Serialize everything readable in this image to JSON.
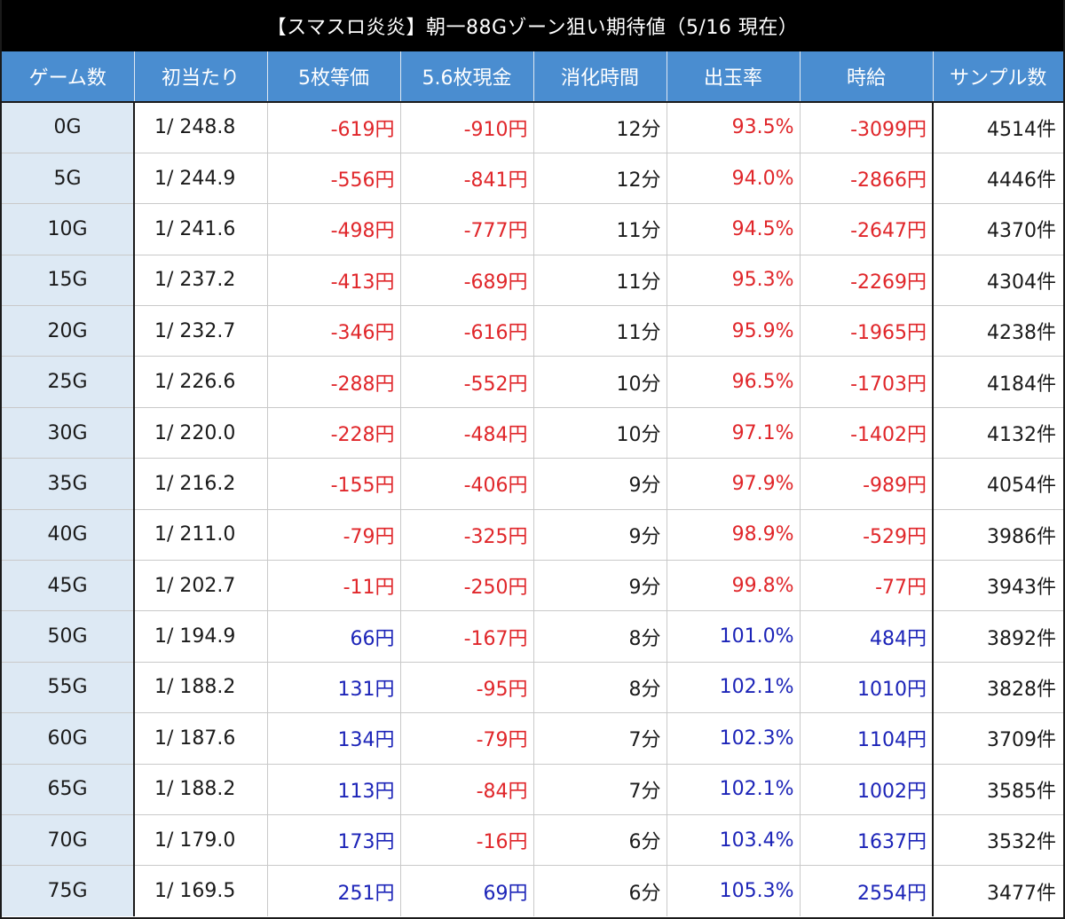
{
  "title": "【スマスロ炎炎】朝一88Gゾーン狙い期待値（5/16 現在）",
  "colors": {
    "header_bg": "#4a8dd0",
    "first_col_bg": "#dde9f4",
    "negative": "#e0262a",
    "positive": "#1c24b8",
    "title_bg": "#000000"
  },
  "chart_data": {
    "type": "table",
    "title": "【スマスロ炎炎】朝一88Gゾーン狙い期待値（5/16 現在）",
    "columns": [
      "ゲーム数",
      "初当たり",
      "5枚等価",
      "5.6枚現金",
      "消化時間",
      "出玉率",
      "時給",
      "サンプル数"
    ],
    "rows": [
      [
        "0G",
        "1/ 248.8",
        "-619円",
        "-910円",
        "12分",
        "93.5%",
        "-3099円",
        "4514件"
      ],
      [
        "5G",
        "1/ 244.9",
        "-556円",
        "-841円",
        "12分",
        "94.0%",
        "-2866円",
        "4446件"
      ],
      [
        "10G",
        "1/ 241.6",
        "-498円",
        "-777円",
        "11分",
        "94.5%",
        "-2647円",
        "4370件"
      ],
      [
        "15G",
        "1/ 237.2",
        "-413円",
        "-689円",
        "11分",
        "95.3%",
        "-2269円",
        "4304件"
      ],
      [
        "20G",
        "1/ 232.7",
        "-346円",
        "-616円",
        "11分",
        "95.9%",
        "-1965円",
        "4238件"
      ],
      [
        "25G",
        "1/ 226.6",
        "-288円",
        "-552円",
        "10分",
        "96.5%",
        "-1703円",
        "4184件"
      ],
      [
        "30G",
        "1/ 220.0",
        "-228円",
        "-484円",
        "10分",
        "97.1%",
        "-1402円",
        "4132件"
      ],
      [
        "35G",
        "1/ 216.2",
        "-155円",
        "-406円",
        "9分",
        "97.9%",
        "-989円",
        "4054件"
      ],
      [
        "40G",
        "1/ 211.0",
        "-79円",
        "-325円",
        "9分",
        "98.9%",
        "-529円",
        "3986件"
      ],
      [
        "45G",
        "1/ 202.7",
        "-11円",
        "-250円",
        "9分",
        "99.8%",
        "-77円",
        "3943件"
      ],
      [
        "50G",
        "1/ 194.9",
        "66円",
        "-167円",
        "8分",
        "101.0%",
        "484円",
        "3892件"
      ],
      [
        "55G",
        "1/ 188.2",
        "131円",
        "-95円",
        "8分",
        "102.1%",
        "1010円",
        "3828件"
      ],
      [
        "60G",
        "1/ 187.6",
        "134円",
        "-79円",
        "7分",
        "102.3%",
        "1104円",
        "3709件"
      ],
      [
        "65G",
        "1/ 188.2",
        "113円",
        "-84円",
        "7分",
        "102.1%",
        "1002円",
        "3585件"
      ],
      [
        "70G",
        "1/ 179.0",
        "173円",
        "-16円",
        "6分",
        "103.4%",
        "1637円",
        "3532件"
      ],
      [
        "75G",
        "1/ 169.5",
        "251円",
        "69円",
        "6分",
        "105.3%",
        "2554円",
        "3477件"
      ]
    ]
  }
}
